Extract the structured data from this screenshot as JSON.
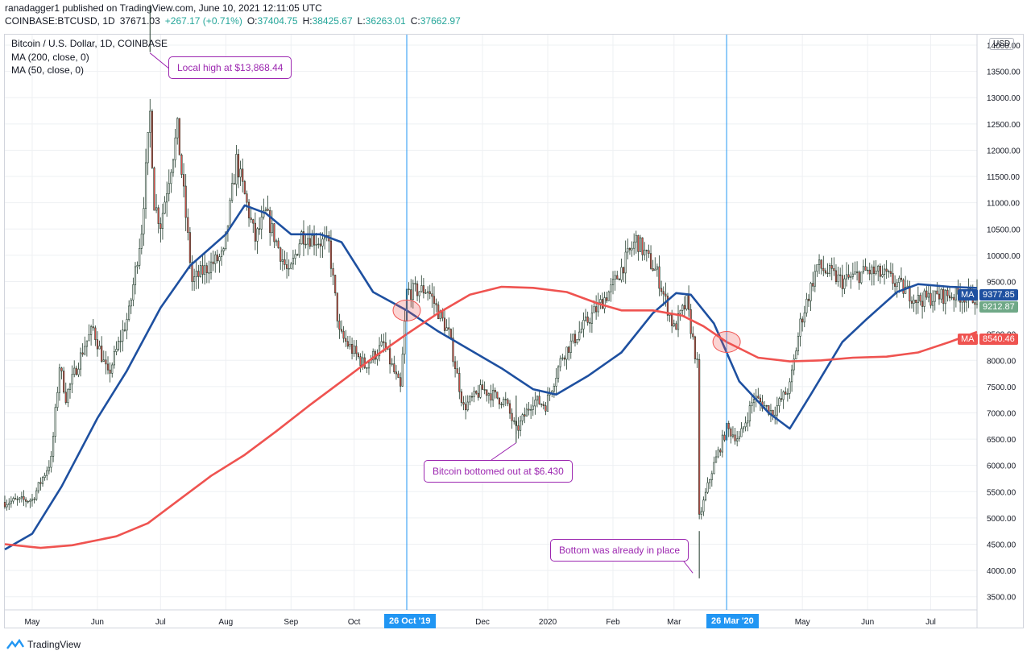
{
  "header": {
    "publish_line": "ranadagger1 published on TradingView.com, June 10, 2021 12:11:05 UTC",
    "symbol": "COINBASE:BTCUSD, 1D",
    "last": "37671.03",
    "change": "+267.17 (+0.71%)",
    "o_label": "O:",
    "o": "37404.75",
    "h_label": "H:",
    "h": "38425.67",
    "l_label": "L:",
    "l": "36263.01",
    "c_label": "C:",
    "c": "37662.97"
  },
  "legend": {
    "title": "Bitcoin / U.S. Dollar, 1D, COINBASE",
    "ma200": "MA (200, close, 0)",
    "ma50": "MA (50, close, 0)"
  },
  "annotations": {
    "local_high": "Local high at $13,868.44",
    "bottomed": "Bitcoin bottomed out at $6.430",
    "bottom_in_place": "Bottom was already in place"
  },
  "markers": {
    "vline1": "26 Oct '19",
    "vline2": "26 Mar '20"
  },
  "price_tags": {
    "ma_label": "MA",
    "ma50_value": "9377.85",
    "last_value": "9212.87",
    "ma200_value": "8540.46"
  },
  "currency_label": "USD",
  "footer": {
    "brand": "TradingView"
  },
  "colors": {
    "up": "#26a69a",
    "down": "#ef5350",
    "candle": "#1f5e3a",
    "ma50": "#1e50a0",
    "ma200": "#ef5350",
    "annotation": "#9c27b0",
    "marker": "#2196f3"
  },
  "chart_data": {
    "type": "candlestick",
    "title": "Bitcoin / U.S. Dollar, 1D, COINBASE",
    "ylabel": "USD",
    "ylim": [
      3250,
      14200
    ],
    "y_ticks": [
      3500,
      4000,
      4500,
      5000,
      5500,
      6000,
      6500,
      7000,
      7500,
      8000,
      8500,
      9000,
      9500,
      10000,
      10500,
      11000,
      11500,
      12000,
      12500,
      13000,
      13500,
      14000
    ],
    "y_tick_labels": [
      "3500.00",
      "4000.00",
      "4500.00",
      "5000.00",
      "5500.00",
      "6000.00",
      "6500.00",
      "7000.00",
      "7500.00",
      "8000.00",
      "8500.00",
      "9000.00",
      "9500.00",
      "10000.00",
      "10500.00",
      "11000.00",
      "11500.00",
      "12000.00",
      "12500.00",
      "13000.00",
      "13500.00",
      "14000.00"
    ],
    "x_range": [
      "2019-04-18",
      "2020-07-23"
    ],
    "x_ticks": [
      {
        "date": "2019-05-01",
        "label": "May"
      },
      {
        "date": "2019-06-01",
        "label": "Jun"
      },
      {
        "date": "2019-07-01",
        "label": "Jul"
      },
      {
        "date": "2019-08-01",
        "label": "Aug"
      },
      {
        "date": "2019-09-01",
        "label": "Sep"
      },
      {
        "date": "2019-10-01",
        "label": "Oct"
      },
      {
        "date": "2019-12-01",
        "label": "Dec"
      },
      {
        "date": "2020-01-01",
        "label": "2020"
      },
      {
        "date": "2020-02-01",
        "label": "Feb"
      },
      {
        "date": "2020-03-01",
        "label": "Mar"
      },
      {
        "date": "2020-05-01",
        "label": "May"
      },
      {
        "date": "2020-06-01",
        "label": "Jun"
      },
      {
        "date": "2020-07-01",
        "label": "Jul"
      }
    ],
    "price_path": [
      [
        "2019-04-18",
        5300
      ],
      [
        "2019-05-01",
        5350
      ],
      [
        "2019-05-10",
        6100
      ],
      [
        "2019-05-14",
        7900
      ],
      [
        "2019-05-17",
        7300
      ],
      [
        "2019-05-26",
        8300
      ],
      [
        "2019-05-30",
        8600
      ],
      [
        "2019-06-06",
        7700
      ],
      [
        "2019-06-16",
        8900
      ],
      [
        "2019-06-22",
        10500
      ],
      [
        "2019-06-26",
        12700
      ],
      [
        "2019-06-28",
        11000
      ],
      [
        "2019-07-01",
        10600
      ],
      [
        "2019-07-09",
        12400
      ],
      [
        "2019-07-16",
        9500
      ],
      [
        "2019-07-24",
        9800
      ],
      [
        "2019-07-31",
        10000
      ],
      [
        "2019-08-06",
        11800
      ],
      [
        "2019-08-15",
        10300
      ],
      [
        "2019-08-20",
        10800
      ],
      [
        "2019-08-31",
        9600
      ],
      [
        "2019-09-06",
        10400
      ],
      [
        "2019-09-19",
        10200
      ],
      [
        "2019-09-24",
        8500
      ],
      [
        "2019-10-06",
        7900
      ],
      [
        "2019-10-15",
        8300
      ],
      [
        "2019-10-23",
        7450
      ],
      [
        "2019-10-26",
        9300
      ],
      [
        "2019-11-05",
        9350
      ],
      [
        "2019-11-15",
        8500
      ],
      [
        "2019-11-22",
        7100
      ],
      [
        "2019-12-01",
        7450
      ],
      [
        "2019-12-12",
        7200
      ],
      [
        "2019-12-17",
        6650
      ],
      [
        "2019-12-25",
        7250
      ],
      [
        "2019-12-31",
        7150
      ],
      [
        "2020-01-08",
        8100
      ],
      [
        "2020-01-19",
        8700
      ],
      [
        "2020-01-31",
        9350
      ],
      [
        "2020-02-12",
        10300
      ],
      [
        "2020-02-22",
        9650
      ],
      [
        "2020-03-01",
        8600
      ],
      [
        "2020-03-07",
        9100
      ],
      [
        "2020-03-12",
        7900
      ],
      [
        "2020-03-13",
        5000
      ],
      [
        "2020-03-19",
        5900
      ],
      [
        "2020-03-26",
        6700
      ],
      [
        "2020-04-01",
        6500
      ],
      [
        "2020-04-08",
        7300
      ],
      [
        "2020-04-17",
        7000
      ],
      [
        "2020-04-25",
        7500
      ],
      [
        "2020-04-30",
        8700
      ],
      [
        "2020-05-08",
        9800
      ],
      [
        "2020-05-20",
        9500
      ],
      [
        "2020-06-01",
        9700
      ],
      [
        "2020-06-10",
        9600
      ],
      [
        "2020-06-25",
        9150
      ],
      [
        "2020-07-10",
        9250
      ],
      [
        "2020-07-23",
        9212.87
      ]
    ],
    "series": [
      {
        "name": "MA (50, close, 0)",
        "color": "#1e50a0",
        "points": [
          [
            "2019-04-18",
            4400
          ],
          [
            "2019-05-01",
            4700
          ],
          [
            "2019-05-15",
            5600
          ],
          [
            "2019-06-01",
            6900
          ],
          [
            "2019-06-15",
            7800
          ],
          [
            "2019-07-01",
            9000
          ],
          [
            "2019-07-15",
            9800
          ],
          [
            "2019-08-01",
            10400
          ],
          [
            "2019-08-10",
            10950
          ],
          [
            "2019-08-20",
            10800
          ],
          [
            "2019-09-01",
            10400
          ],
          [
            "2019-09-15",
            10400
          ],
          [
            "2019-09-25",
            10250
          ],
          [
            "2019-10-10",
            9300
          ],
          [
            "2019-10-26",
            8950
          ],
          [
            "2019-11-10",
            8550
          ],
          [
            "2019-11-25",
            8200
          ],
          [
            "2019-12-10",
            7850
          ],
          [
            "2019-12-25",
            7450
          ],
          [
            "2020-01-05",
            7350
          ],
          [
            "2020-01-20",
            7700
          ],
          [
            "2020-02-05",
            8150
          ],
          [
            "2020-02-20",
            8900
          ],
          [
            "2020-03-02",
            9280
          ],
          [
            "2020-03-09",
            9250
          ],
          [
            "2020-03-20",
            8700
          ],
          [
            "2020-04-01",
            7600
          ],
          [
            "2020-04-15",
            7000
          ],
          [
            "2020-04-25",
            6700
          ],
          [
            "2020-05-05",
            7350
          ],
          [
            "2020-05-20",
            8350
          ],
          [
            "2020-06-01",
            8800
          ],
          [
            "2020-06-15",
            9300
          ],
          [
            "2020-06-25",
            9450
          ],
          [
            "2020-07-10",
            9400
          ],
          [
            "2020-07-23",
            9377.85
          ]
        ]
      },
      {
        "name": "MA (200, close, 0)",
        "color": "#ef5350",
        "points": [
          [
            "2019-04-18",
            4500
          ],
          [
            "2019-05-05",
            4430
          ],
          [
            "2019-05-20",
            4480
          ],
          [
            "2019-06-10",
            4650
          ],
          [
            "2019-06-25",
            4900
          ],
          [
            "2019-07-10",
            5350
          ],
          [
            "2019-07-25",
            5800
          ],
          [
            "2019-08-10",
            6200
          ],
          [
            "2019-08-25",
            6650
          ],
          [
            "2019-09-10",
            7150
          ],
          [
            "2019-09-25",
            7600
          ],
          [
            "2019-10-10",
            8050
          ],
          [
            "2019-10-26",
            8500
          ],
          [
            "2019-11-10",
            8900
          ],
          [
            "2019-11-25",
            9250
          ],
          [
            "2019-12-10",
            9400
          ],
          [
            "2019-12-25",
            9380
          ],
          [
            "2020-01-10",
            9300
          ],
          [
            "2020-01-25",
            9080
          ],
          [
            "2020-02-05",
            8950
          ],
          [
            "2020-02-20",
            8950
          ],
          [
            "2020-03-05",
            8850
          ],
          [
            "2020-03-15",
            8650
          ],
          [
            "2020-03-26",
            8350
          ],
          [
            "2020-04-10",
            8050
          ],
          [
            "2020-04-25",
            7980
          ],
          [
            "2020-05-10",
            8000
          ],
          [
            "2020-05-25",
            8050
          ],
          [
            "2020-06-10",
            8070
          ],
          [
            "2020-06-25",
            8150
          ],
          [
            "2020-07-10",
            8350
          ],
          [
            "2020-07-23",
            8540.46
          ]
        ]
      }
    ],
    "events": [
      {
        "date": "2019-10-26",
        "label": "26 Oct '19",
        "ma_cross_price": 8950
      },
      {
        "date": "2020-03-26",
        "label": "26 Mar '20",
        "ma_cross_price": 8350
      }
    ],
    "key_points": [
      {
        "date": "2019-06-26",
        "price": 13868.44,
        "label": "Local high at $13,868.44"
      },
      {
        "date": "2019-12-17",
        "price": 6430,
        "label": "Bitcoin bottomed out at $6.430"
      },
      {
        "date": "2020-03-13",
        "price": 3850,
        "label": "Bottom was already in place"
      }
    ]
  }
}
